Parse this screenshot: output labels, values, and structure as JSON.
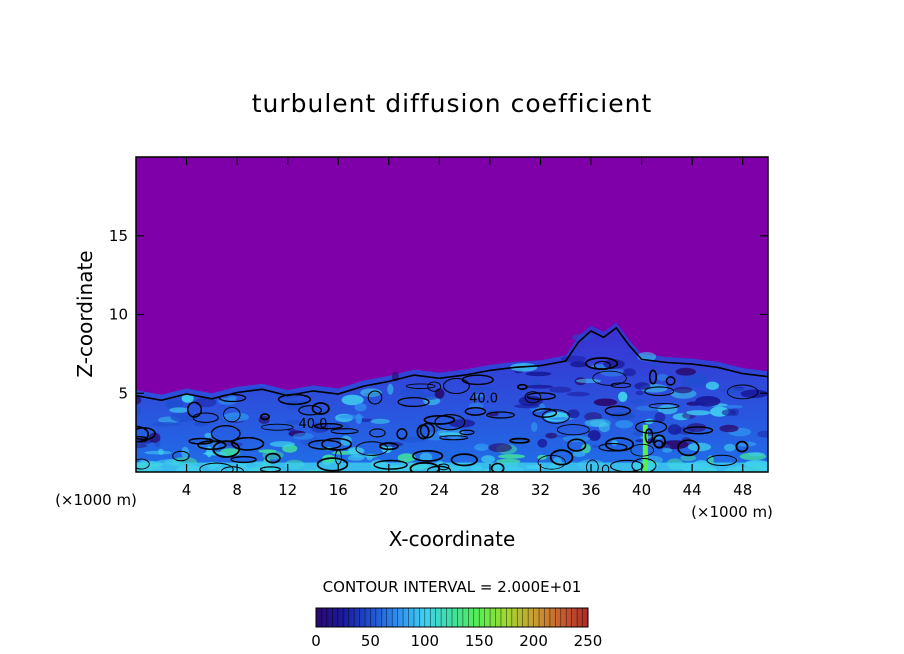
{
  "chart_data": {
    "type": "heatmap",
    "title": "turbulent diffusion coefficient",
    "xlabel": "X-coordinate",
    "ylabel": "Z-coordinate",
    "x_unit_left": "(×1000 m)",
    "x_unit_right": "(×1000 m)",
    "xlim": [
      0,
      50
    ],
    "ylim": [
      0,
      20
    ],
    "x_ticks": [
      "4",
      "8",
      "12",
      "16",
      "20",
      "24",
      "28",
      "32",
      "36",
      "40",
      "44",
      "48"
    ],
    "x_tick_values": [
      4,
      8,
      12,
      16,
      20,
      24,
      28,
      32,
      36,
      40,
      44,
      48
    ],
    "y_ticks": [
      "5",
      "10",
      "15"
    ],
    "y_tick_values": [
      5,
      10,
      15
    ],
    "contour_interval_text": "CONTOUR INTERVAL = 2.000E+01",
    "contour_interval": 20,
    "contour_labels": [
      {
        "text": "40.0",
        "x": 27.5,
        "y": 4.4
      },
      {
        "text": "40.0",
        "x": 14.0,
        "y": 2.8
      }
    ],
    "cloud_top_profile": {
      "x": [
        0,
        2,
        4,
        6,
        8,
        10,
        12,
        14,
        16,
        18,
        20,
        22,
        24,
        26,
        28,
        30,
        32,
        34,
        35,
        36,
        37,
        38,
        39,
        40,
        42,
        44,
        46,
        48,
        50
      ],
      "z": [
        5.2,
        4.9,
        5.3,
        5.0,
        5.4,
        5.6,
        5.2,
        5.5,
        5.3,
        5.8,
        6.1,
        6.5,
        6.3,
        6.5,
        6.8,
        7.0,
        7.1,
        7.4,
        8.6,
        9.3,
        8.9,
        9.5,
        8.4,
        7.5,
        7.3,
        7.2,
        7.0,
        6.6,
        6.4
      ]
    },
    "colorbar": {
      "min": 0,
      "max": 250,
      "tick_labels": [
        "0",
        "50",
        "100",
        "150",
        "200",
        "250"
      ],
      "tick_values": [
        0,
        50,
        100,
        150,
        200,
        250
      ],
      "colors": [
        "#2a0a6e",
        "#1a1a9a",
        "#1f4fd0",
        "#2f8ff0",
        "#3fd0ef",
        "#40e0a0",
        "#5aee50",
        "#a0d830",
        "#c8a030",
        "#c86030",
        "#c04040",
        "#b02828"
      ]
    },
    "background_color": "#7f00a8"
  }
}
